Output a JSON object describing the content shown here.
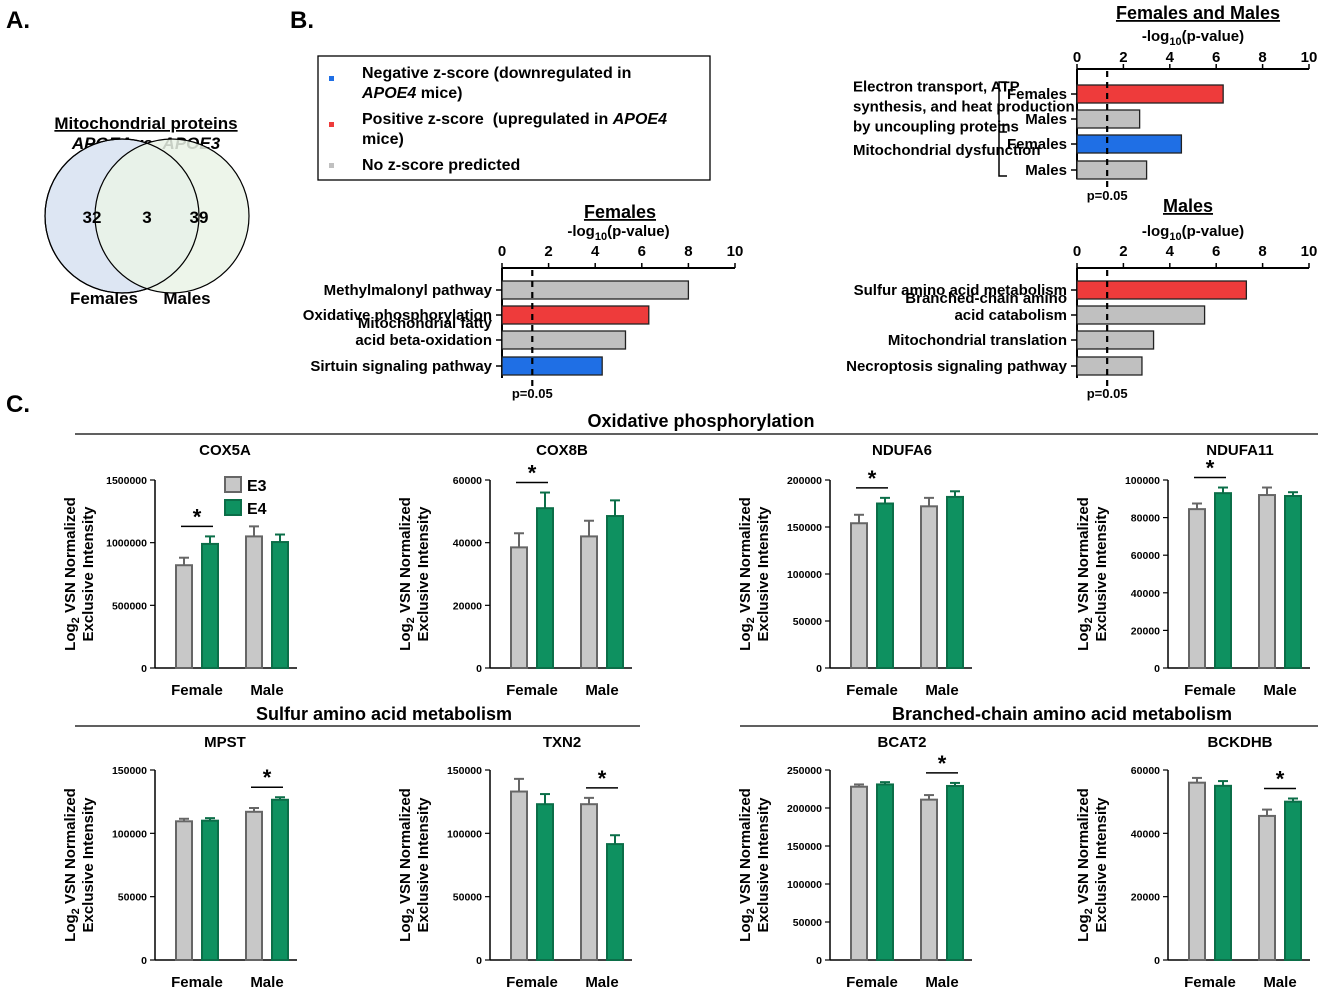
{
  "panel_labels": {
    "a": "A.",
    "b": "B.",
    "c": "C."
  },
  "colors": {
    "negative": "#1f6fe5",
    "positive": "#ee3b3b",
    "neutral": "#c0c0c0",
    "e3": "#c8c8c8",
    "e4": "#0e9160",
    "venn_f": "#dde6f3",
    "venn_m": "#eaf3e6"
  },
  "venn": {
    "title_line1": "Mitochondrial proteins",
    "title_line2_a": "APOE4",
    "title_line2_b": " vs. ",
    "title_line2_c": "APOE3",
    "females_only": "32",
    "overlap": "3",
    "males_only": "39",
    "label_females": "Females",
    "label_males": "Males"
  },
  "legend": {
    "negative_line1": "Negative z-score (downregulated in",
    "negative_line2_italic": "APOE4",
    "negative_line2_rest": " mice)",
    "positive_line1_a": "Positive z-score  (upregulated in ",
    "positive_line1_italic": "APOE4",
    "positive_line2": "mice)",
    "neutral": "No z-score predicted"
  },
  "pathway_charts": [
    {
      "id": "fm",
      "title": "Females and Males",
      "axis_prefix": "-log",
      "axis_sub": "10",
      "axis_suffix": "(p-value)",
      "ticks": [
        "0",
        "2",
        "4",
        "6",
        "8",
        "10"
      ],
      "threshold_label": "p=0.05",
      "threshold": 1.3,
      "xlim": [
        0,
        10
      ],
      "groups": [
        {
          "name_lines": [
            "Electron transport, ATP",
            "synthesis, and heat production",
            "by uncoupling proteins"
          ],
          "rows": [
            {
              "label": "Females",
              "value": 6.3,
              "z": "positive"
            },
            {
              "label": "Males",
              "value": 2.7,
              "z": "neutral"
            }
          ]
        },
        {
          "name_lines": [
            "Mitochondrial dysfunction"
          ],
          "rows": [
            {
              "label": "Females",
              "value": 4.5,
              "z": "negative"
            },
            {
              "label": "Males",
              "value": 3.0,
              "z": "neutral"
            }
          ]
        }
      ]
    },
    {
      "id": "fem",
      "title": "Females",
      "axis_prefix": "-log",
      "axis_sub": "10",
      "axis_suffix": "(p-value)",
      "ticks": [
        "0",
        "2",
        "4",
        "6",
        "8",
        "10"
      ],
      "threshold_label": "p=0.05",
      "threshold": 1.3,
      "xlim": [
        0,
        10
      ],
      "rows": [
        {
          "label_lines": [
            "Methylmalonyl pathway"
          ],
          "value": 8.0,
          "z": "neutral"
        },
        {
          "label_lines": [
            "Oxidative phosphorylation"
          ],
          "value": 6.3,
          "z": "positive"
        },
        {
          "label_lines": [
            "Mitochondrial fatty",
            "acid beta-oxidation"
          ],
          "value": 5.3,
          "z": "neutral"
        },
        {
          "label_lines": [
            "Sirtuin signaling pathway"
          ],
          "value": 4.3,
          "z": "negative"
        }
      ]
    },
    {
      "id": "mal",
      "title": "Males",
      "axis_prefix": "-log",
      "axis_sub": "10",
      "axis_suffix": "(p-value)",
      "ticks": [
        "0",
        "2",
        "4",
        "6",
        "8",
        "10"
      ],
      "threshold_label": "p=0.05",
      "threshold": 1.3,
      "xlim": [
        0,
        10
      ],
      "rows": [
        {
          "label_lines": [
            "Sulfur amino acid metabolism"
          ],
          "value": 7.3,
          "z": "positive"
        },
        {
          "label_lines": [
            "Branched-chain amino",
            "acid catabolism"
          ],
          "value": 5.5,
          "z": "neutral"
        },
        {
          "label_lines": [
            "Mitochondrial translation"
          ],
          "value": 3.3,
          "z": "neutral"
        },
        {
          "label_lines": [
            "Necroptosis signaling pathway"
          ],
          "value": 2.8,
          "z": "neutral"
        }
      ]
    }
  ],
  "section_titles": {
    "oxphos": "Oxidative phosphorylation",
    "sulfur": "Sulfur amino acid metabolism",
    "bcaa": "Branched-chain amino acid metabolism"
  },
  "ylabel": {
    "line1_prefix": "Log",
    "line1_sub": "2",
    "line1_suffix": " VSN Normalized",
    "line2": "Exclusive Intensity"
  },
  "bar_legend": {
    "e3": "E3",
    "e4": "E4"
  },
  "chart_data": [
    {
      "type": "bar",
      "title": "COX5A",
      "categories": [
        "Female",
        "Male"
      ],
      "series": [
        {
          "name": "E3",
          "values": [
            820000,
            1050000
          ],
          "errors": [
            60000,
            80000
          ]
        },
        {
          "name": "E4",
          "values": [
            990000,
            1005000
          ],
          "errors": [
            60000,
            60000
          ]
        }
      ],
      "ylim": [
        0,
        1500000
      ],
      "yticks": [
        "0",
        "500000",
        "1000000",
        "1500000"
      ],
      "sig_star": "*",
      "sig_group": "Female"
    },
    {
      "type": "bar",
      "title": "COX8B",
      "categories": [
        "Female",
        "Male"
      ],
      "series": [
        {
          "name": "E3",
          "values": [
            38500,
            42000
          ],
          "errors": [
            4500,
            5000
          ]
        },
        {
          "name": "E4",
          "values": [
            51000,
            48500
          ],
          "errors": [
            5000,
            5000
          ]
        }
      ],
      "ylim": [
        0,
        60000
      ],
      "yticks": [
        "0",
        "20000",
        "40000",
        "60000"
      ],
      "sig_star": "*",
      "sig_group": "Female"
    },
    {
      "type": "bar",
      "title": "NDUFA6",
      "categories": [
        "Female",
        "Male"
      ],
      "series": [
        {
          "name": "E3",
          "values": [
            154000,
            172000
          ],
          "errors": [
            9000,
            9000
          ]
        },
        {
          "name": "E4",
          "values": [
            175000,
            182000
          ],
          "errors": [
            6000,
            6000
          ]
        }
      ],
      "ylim": [
        0,
        200000
      ],
      "yticks": [
        "0",
        "50000",
        "100000",
        "150000",
        "200000"
      ],
      "sig_star": "*",
      "sig_group": "Female"
    },
    {
      "type": "bar",
      "title": "NDUFA11",
      "categories": [
        "Female",
        "Male"
      ],
      "series": [
        {
          "name": "E3",
          "values": [
            84500,
            92000
          ],
          "errors": [
            3000,
            4000
          ]
        },
        {
          "name": "E4",
          "values": [
            93000,
            91500
          ],
          "errors": [
            3000,
            2000
          ]
        }
      ],
      "ylim": [
        0,
        100000
      ],
      "yticks": [
        "0",
        "20000",
        "40000",
        "60000",
        "80000",
        "100000"
      ],
      "sig_star": "*",
      "sig_group": "Female"
    },
    {
      "type": "bar",
      "title": "MPST",
      "categories": [
        "Female",
        "Male"
      ],
      "series": [
        {
          "name": "E3",
          "values": [
            109500,
            117000
          ],
          "errors": [
            2000,
            3000
          ]
        },
        {
          "name": "E4",
          "values": [
            110000,
            126500
          ],
          "errors": [
            2000,
            2000
          ]
        }
      ],
      "ylim": [
        0,
        150000
      ],
      "yticks": [
        "0",
        "50000",
        "100000",
        "150000"
      ],
      "sig_star": "*",
      "sig_group": "Male"
    },
    {
      "type": "bar",
      "title": "TXN2",
      "categories": [
        "Female",
        "Male"
      ],
      "series": [
        {
          "name": "E3",
          "values": [
            133000,
            123000
          ],
          "errors": [
            10000,
            5000
          ]
        },
        {
          "name": "E4",
          "values": [
            123000,
            91500
          ],
          "errors": [
            8000,
            7000
          ]
        }
      ],
      "ylim": [
        0,
        150000
      ],
      "yticks": [
        "0",
        "50000",
        "100000",
        "150000"
      ],
      "sig_star": "*",
      "sig_group": "Male"
    },
    {
      "type": "bar",
      "title": "BCAT2",
      "categories": [
        "Female",
        "Male"
      ],
      "series": [
        {
          "name": "E3",
          "values": [
            228000,
            211000
          ],
          "errors": [
            3000,
            6000
          ]
        },
        {
          "name": "E4",
          "values": [
            231000,
            229000
          ],
          "errors": [
            3000,
            4000
          ]
        }
      ],
      "ylim": [
        0,
        250000
      ],
      "yticks": [
        "0",
        "50000",
        "100000",
        "150000",
        "200000",
        "250000"
      ],
      "sig_star": "*",
      "sig_group": "Male"
    },
    {
      "type": "bar",
      "title": "BCKDHB",
      "categories": [
        "Female",
        "Male"
      ],
      "series": [
        {
          "name": "E3",
          "values": [
            56000,
            45500
          ],
          "errors": [
            1500,
            2000
          ]
        },
        {
          "name": "E4",
          "values": [
            55000,
            50000
          ],
          "errors": [
            1500,
            1000
          ]
        }
      ],
      "ylim": [
        0,
        60000
      ],
      "yticks": [
        "0",
        "20000",
        "40000",
        "60000"
      ],
      "sig_star": "*",
      "sig_group": "Male"
    }
  ]
}
